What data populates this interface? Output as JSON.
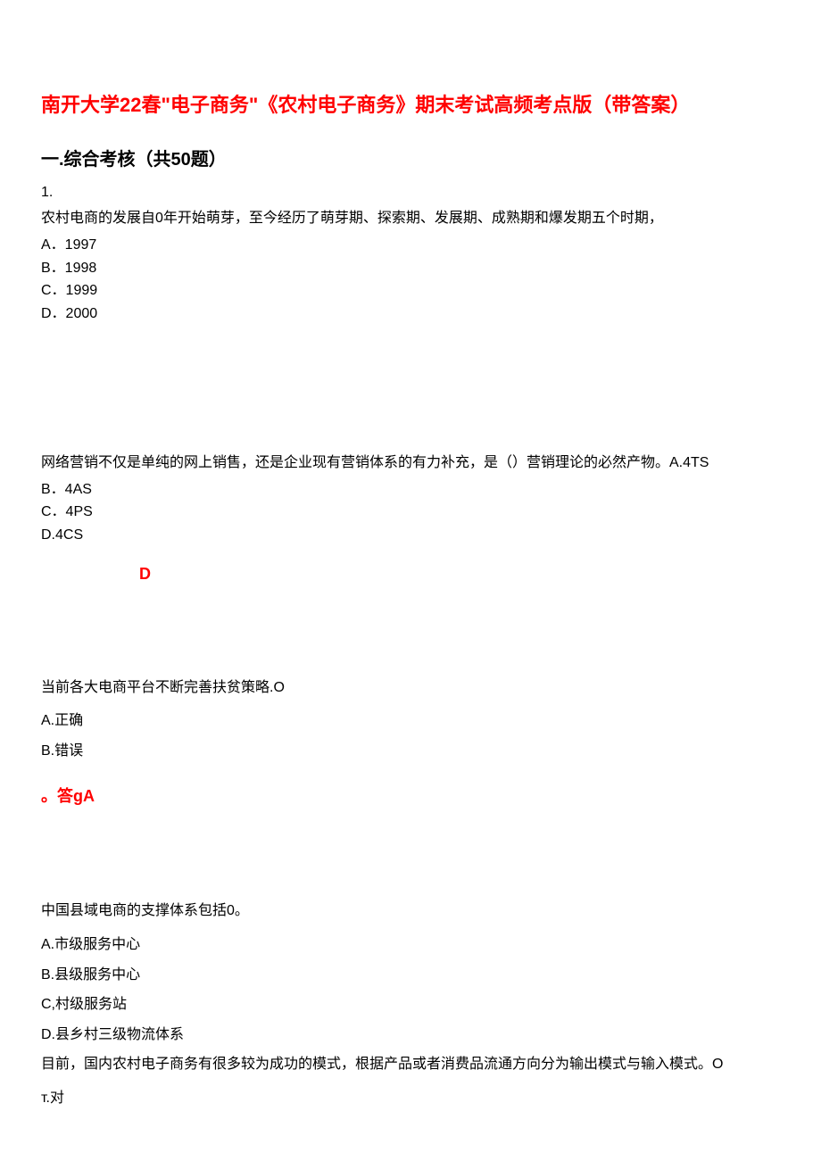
{
  "title": "南开大学22春\"电子商务\"《农村电子商务》期末考试高频考点版（带答案）",
  "section_header": "一.综合考核（共50题）",
  "q1": {
    "num": "1.",
    "text": "农村电商的发展自0年开始萌芽，至今经历了萌芽期、探索期、发展期、成熟期和爆发期五个时期，",
    "optA": "A．1997",
    "optB": "B．1998",
    "optC": "C．1999",
    "optD": "D．2000"
  },
  "q2": {
    "text": "网络营销不仅是单纯的网上销售，还是企业现有营销体系的有力补充，是（）营销理论的必然产物。A.4TS",
    "optB": "B．4AS",
    "optC": "C．4PS",
    "optD": "D.4CS",
    "answer": "D"
  },
  "q3": {
    "text": "当前各大电商平台不断完善扶贫策略.O",
    "optA": "A.正确",
    "optB": "B.错误",
    "answer": "。答gA"
  },
  "q4": {
    "text": "中国县域电商的支撑体系包括0。",
    "optA": "A.市级服务中心",
    "optB": "B.县级服务中心",
    "optC": "C,村级服务站",
    "optD": "D.县乡村三级物流体系"
  },
  "q5": {
    "text": "目前，国内农村电子商务有很多较为成功的模式，根据产品或者消费品流通方向分为输出模式与输入模式。O",
    "optT": "т.对"
  },
  "colors": {
    "title": "#ff0000",
    "text": "#000000",
    "answer": "#ff0000",
    "background": "#ffffff"
  }
}
